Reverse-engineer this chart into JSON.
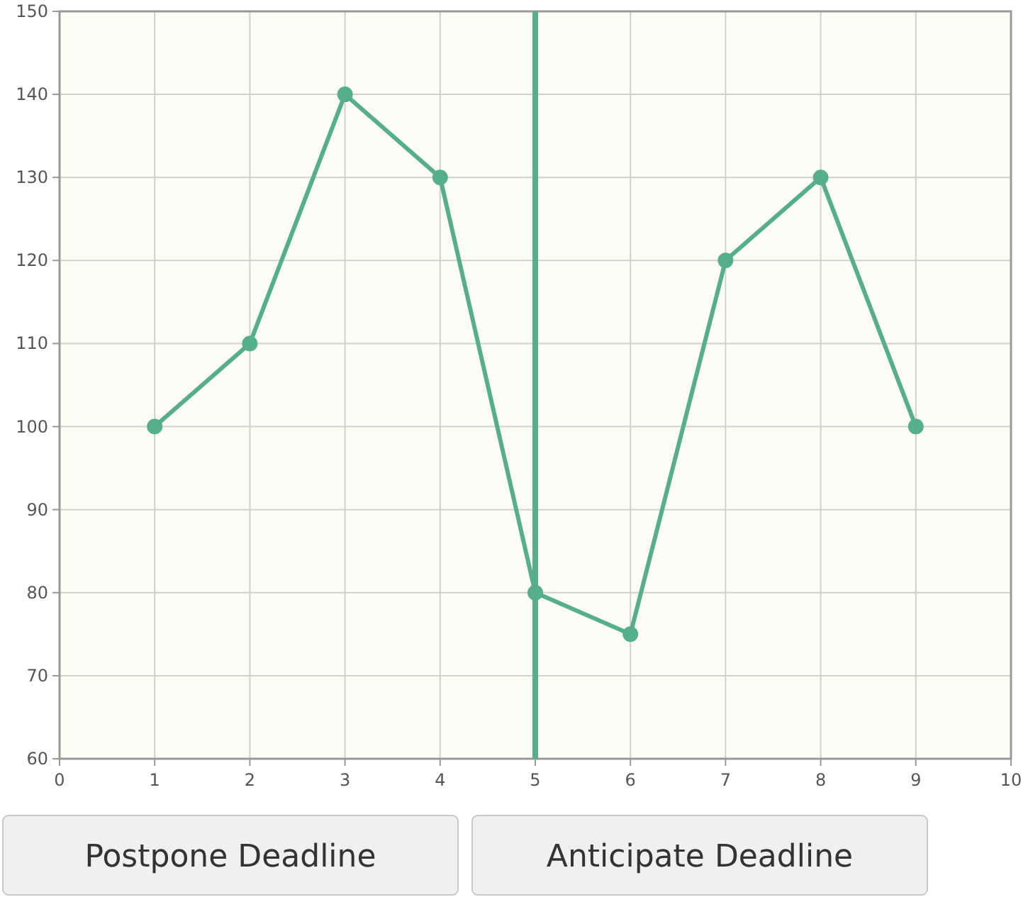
{
  "chart_data": {
    "type": "line",
    "x": [
      1,
      2,
      3,
      4,
      5,
      6,
      7,
      8,
      9
    ],
    "series": [
      {
        "color": "#55b08a",
        "values": [
          100,
          110,
          140,
          130,
          80,
          75,
          120,
          130,
          100
        ]
      }
    ],
    "xlim": [
      0,
      10
    ],
    "xticks": [
      0,
      1,
      2,
      3,
      4,
      5,
      6,
      7,
      8,
      9,
      10
    ],
    "ylim": [
      60,
      150
    ],
    "yticks": [
      60,
      70,
      80,
      90,
      100,
      110,
      120,
      130,
      140,
      150
    ],
    "grid": true,
    "marker": "circle",
    "line_style": "solid",
    "ref_lines": [
      {
        "axis": "x",
        "value": 5,
        "color": "#55b08a"
      }
    ],
    "annotations": [
      "Postpone Deadline",
      "Anticipate Deadline"
    ]
  }
}
